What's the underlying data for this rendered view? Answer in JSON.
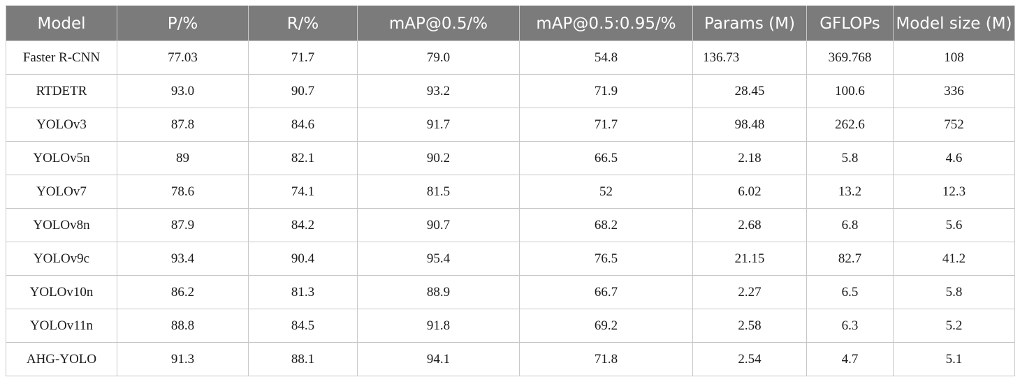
{
  "table": {
    "headers": [
      "Model",
      "P/%",
      "R/%",
      "mAP@0.5/%",
      "mAP@0.5:0.95/%",
      "Params (M)",
      "GFLOPs",
      "Model size (M)"
    ],
    "rows": [
      [
        "Faster R-CNN",
        "77.03",
        "71.7",
        "79.0",
        "54.8",
        "136.73",
        "369.768",
        "108"
      ],
      [
        "RTDETR",
        "93.0",
        "90.7",
        "93.2",
        "71.9",
        "28.45",
        "100.6",
        "336"
      ],
      [
        "YOLOv3",
        "87.8",
        "84.6",
        "91.7",
        "71.7",
        "98.48",
        "262.6",
        "752"
      ],
      [
        "YOLOv5n",
        "89",
        "82.1",
        "90.2",
        "66.5",
        "2.18",
        "5.8",
        "4.6"
      ],
      [
        "YOLOv7",
        "78.6",
        "74.1",
        "81.5",
        "52",
        "6.02",
        "13.2",
        "12.3"
      ],
      [
        "YOLOv8n",
        "87.9",
        "84.2",
        "90.7",
        "68.2",
        "2.68",
        "6.8",
        "5.6"
      ],
      [
        "YOLOv9c",
        "93.4",
        "90.4",
        "95.4",
        "76.5",
        "21.15",
        "82.7",
        "41.2"
      ],
      [
        "YOLOv10n",
        "86.2",
        "81.3",
        "88.9",
        "66.7",
        "2.27",
        "6.5",
        "5.8"
      ],
      [
        "YOLOv11n",
        "88.8",
        "84.5",
        "91.8",
        "69.2",
        "2.58",
        "6.3",
        "5.2"
      ],
      [
        "AHG-YOLO",
        "91.3",
        "88.1",
        "94.1",
        "71.8",
        "2.54",
        "4.7",
        "5.1"
      ]
    ]
  }
}
